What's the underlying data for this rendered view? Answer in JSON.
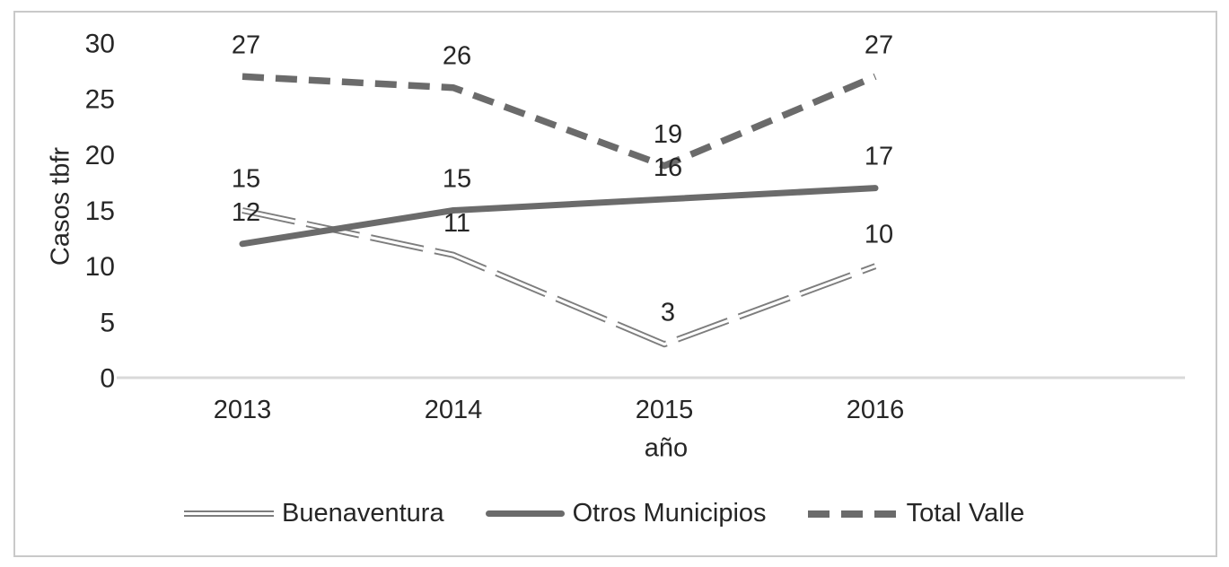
{
  "chart_data": {
    "type": "line",
    "categories": [
      "2013",
      "2014",
      "2015",
      "2016"
    ],
    "series": [
      {
        "name": "Buenaventura",
        "values": [
          15,
          11,
          3,
          10
        ],
        "line_style": "double-dash",
        "color": "#7d7d7d"
      },
      {
        "name": "Otros Municipios",
        "values": [
          12,
          15,
          16,
          17
        ],
        "line_style": "solid",
        "color": "#6b6b6b"
      },
      {
        "name": "Total Valle",
        "values": [
          27,
          26,
          19,
          27
        ],
        "line_style": "dashed",
        "color": "#6b6b6b"
      }
    ],
    "xlabel": "año",
    "ylabel": "Casos tbfr",
    "ylim": [
      0,
      30
    ],
    "yticks": [
      0,
      5,
      10,
      15,
      20,
      25,
      30
    ],
    "grid": false,
    "legend_position": "bottom",
    "data_labels_shown": true
  },
  "style": {
    "text_color": "#262626",
    "axis_line_color": "#d9d9d9",
    "frame_border_color": "#c9c9c9",
    "background": "#ffffff"
  }
}
